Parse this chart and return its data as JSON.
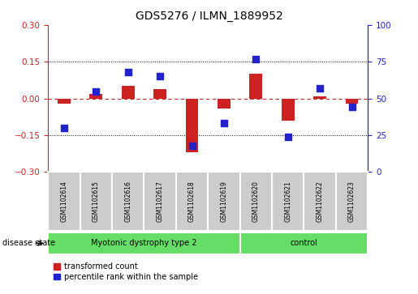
{
  "title": "GDS5276 / ILMN_1889952",
  "samples": [
    "GSM1102614",
    "GSM1102615",
    "GSM1102616",
    "GSM1102617",
    "GSM1102618",
    "GSM1102619",
    "GSM1102620",
    "GSM1102621",
    "GSM1102622",
    "GSM1102623"
  ],
  "red_values": [
    -0.02,
    0.02,
    0.05,
    0.04,
    -0.22,
    -0.04,
    0.1,
    -0.09,
    0.01,
    -0.02
  ],
  "blue_values": [
    30,
    55,
    68,
    65,
    18,
    33,
    77,
    24,
    57,
    44
  ],
  "disease_groups": [
    {
      "label": "Myotonic dystrophy type 2",
      "start": 0,
      "end": 5
    },
    {
      "label": "control",
      "start": 6,
      "end": 9
    }
  ],
  "disease_label": "disease state",
  "ylim_left": [
    -0.3,
    0.3
  ],
  "ylim_right": [
    0,
    100
  ],
  "yticks_left": [
    -0.3,
    -0.15,
    0.0,
    0.15,
    0.3
  ],
  "yticks_right": [
    0,
    25,
    50,
    75,
    100
  ],
  "hlines_dotted": [
    0.15,
    -0.15
  ],
  "hline_zero": 0.0,
  "red_color": "#cc2222",
  "blue_color": "#2222cc",
  "green_fill": "#66dd66",
  "gray_fill": "#cccccc",
  "legend_red_label": "transformed count",
  "legend_blue_label": "percentile rank within the sample",
  "bar_width": 0.4,
  "dot_size": 28,
  "title_fontsize": 10,
  "tick_fontsize": 7.5,
  "label_fontsize": 7,
  "sample_fontsize": 5.5
}
